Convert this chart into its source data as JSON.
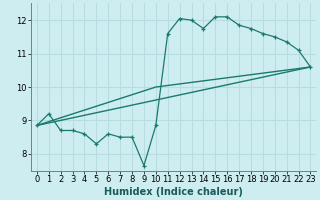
{
  "xlabel": "Humidex (Indice chaleur)",
  "xlim": [
    -0.5,
    23.5
  ],
  "ylim": [
    7.5,
    12.5
  ],
  "yticks": [
    8,
    9,
    10,
    11,
    12
  ],
  "xticks": [
    0,
    1,
    2,
    3,
    4,
    5,
    6,
    7,
    8,
    9,
    10,
    11,
    12,
    13,
    14,
    15,
    16,
    17,
    18,
    19,
    20,
    21,
    22,
    23
  ],
  "bg_color": "#ceedf0",
  "line_color": "#1a7a6e",
  "grid_color": "#b8dde0",
  "series1_x": [
    0,
    1,
    2,
    3,
    4,
    5,
    6,
    7,
    8,
    9,
    10,
    11,
    12,
    13,
    14,
    15,
    16,
    17,
    18,
    19,
    20,
    21,
    22,
    23
  ],
  "series1_y": [
    8.85,
    9.2,
    8.7,
    8.7,
    8.6,
    8.3,
    8.6,
    8.5,
    8.5,
    7.65,
    8.85,
    11.6,
    12.05,
    12.0,
    11.75,
    12.1,
    12.1,
    11.85,
    11.75,
    11.6,
    11.5,
    11.35,
    11.1,
    10.6
  ],
  "series2_x": [
    0,
    23
  ],
  "series2_y": [
    8.85,
    10.6
  ],
  "series3_x": [
    0,
    10,
    23
  ],
  "series3_y": [
    8.85,
    10.0,
    10.6
  ]
}
